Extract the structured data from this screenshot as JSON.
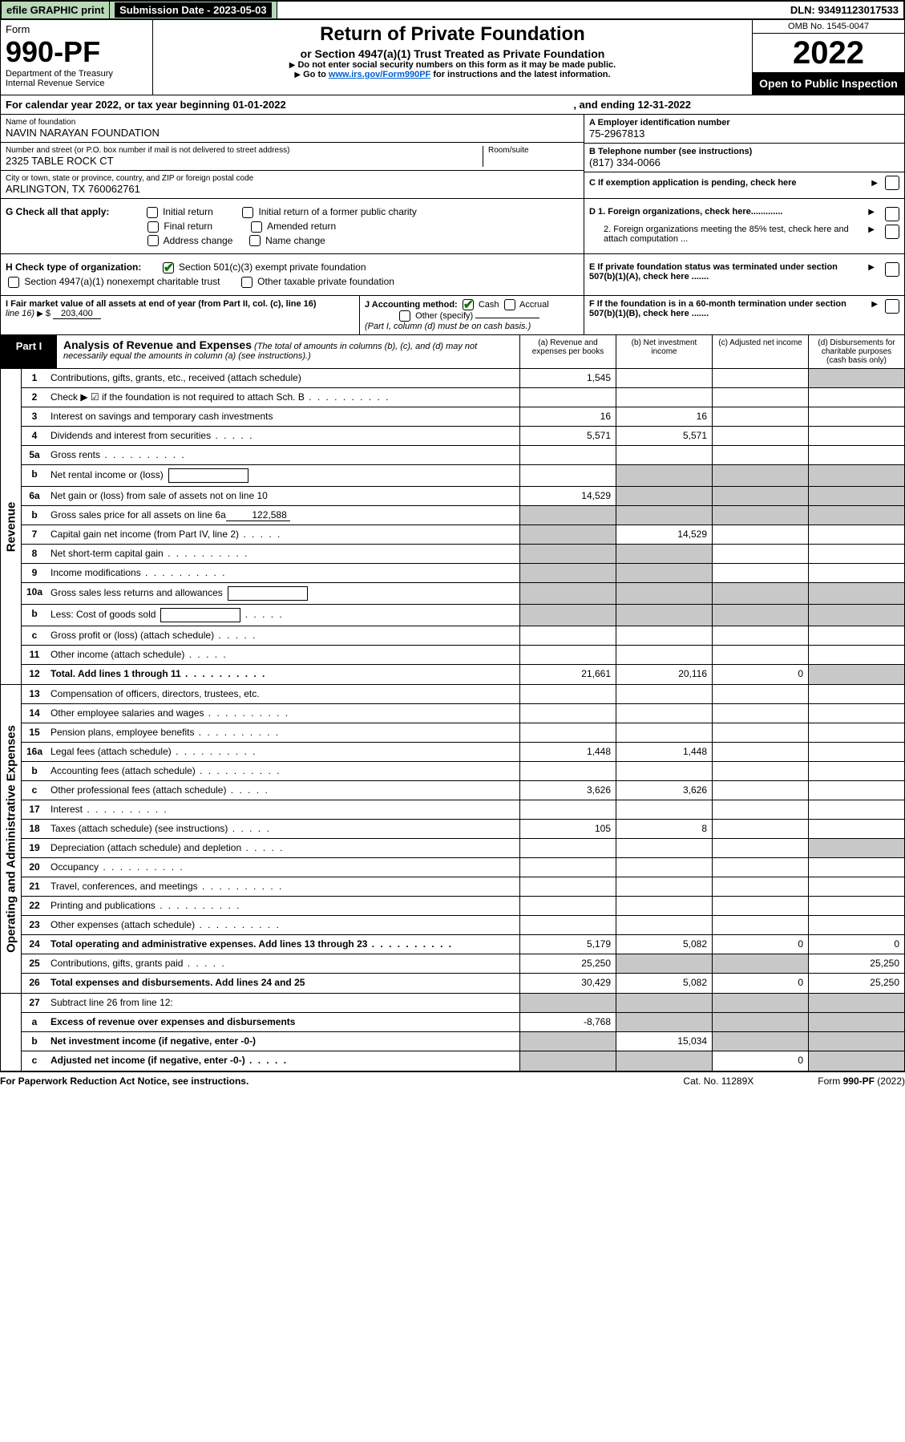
{
  "topbar": {
    "efile": "efile GRAPHIC print",
    "subdate_label": "Submission Date - 2023-05-03",
    "dln": "DLN: 93491123017533"
  },
  "header": {
    "form_label": "Form",
    "form_number": "990-PF",
    "dept": "Department of the Treasury",
    "irs": "Internal Revenue Service",
    "title": "Return of Private Foundation",
    "subtitle": "or Section 4947(a)(1) Trust Treated as Private Foundation",
    "note1": "Do not enter social security numbers on this form as it may be made public.",
    "note2_prefix": "Go to ",
    "note2_link": "www.irs.gov/Form990PF",
    "note2_suffix": " for instructions and the latest information.",
    "omb": "OMB No. 1545-0047",
    "year": "2022",
    "inspect": "Open to Public Inspection"
  },
  "calendar": {
    "text": "For calendar year 2022, or tax year beginning 01-01-2022",
    "ending": ", and ending 12-31-2022"
  },
  "info": {
    "name_label": "Name of foundation",
    "name": "NAVIN NARAYAN FOUNDATION",
    "addr_label": "Number and street (or P.O. box number if mail is not delivered to street address)",
    "addr": "2325 TABLE ROCK CT",
    "room_label": "Room/suite",
    "city_label": "City or town, state or province, country, and ZIP or foreign postal code",
    "city": "ARLINGTON, TX  760062761",
    "A_label": "A Employer identification number",
    "A_val": "75-2967813",
    "B_label": "B Telephone number (see instructions)",
    "B_val": "(817) 334-0066",
    "C_label": "C If exemption application is pending, check here"
  },
  "G": {
    "label": "G Check all that apply:",
    "opts": [
      "Initial return",
      "Final return",
      "Address change",
      "Initial return of a former public charity",
      "Amended return",
      "Name change"
    ]
  },
  "D": {
    "d1": "D 1. Foreign organizations, check here.............",
    "d2": "2. Foreign organizations meeting the 85% test, check here and attach computation ...",
    "e": "E  If private foundation status was terminated under section 507(b)(1)(A), check here .......",
    "f": "F  If the foundation is in a 60-month termination under section 507(b)(1)(B), check here ......."
  },
  "H": {
    "label": "H Check type of organization:",
    "opt1": "Section 501(c)(3) exempt private foundation",
    "opt2": "Section 4947(a)(1) nonexempt charitable trust",
    "opt3": "Other taxable private foundation"
  },
  "I": {
    "label": "I Fair market value of all assets at end of year (from Part II, col. (c), line 16)",
    "val_prefix": "$",
    "val": "203,400"
  },
  "J": {
    "label": "J Accounting method:",
    "opts": [
      "Cash",
      "Accrual",
      "Other (specify)"
    ],
    "note": "(Part I, column (d) must be on cash basis.)"
  },
  "partI": {
    "label": "Part I",
    "title": "Analysis of Revenue and Expenses",
    "desc": "(The total of amounts in columns (b), (c), and (d) may not necessarily equal the amounts in column (a) (see instructions).)",
    "cols": {
      "a": "(a)  Revenue and expenses per books",
      "b": "(b)  Net investment income",
      "c": "(c)  Adjusted net income",
      "d": "(d)  Disbursements for charitable purposes (cash basis only)"
    }
  },
  "side_labels": {
    "revenue": "Revenue",
    "expenses": "Operating and Administrative Expenses"
  },
  "rows_revenue": [
    {
      "n": "1",
      "desc": "Contributions, gifts, grants, etc., received (attach schedule)",
      "a": "1,545",
      "d_grey": true
    },
    {
      "n": "2",
      "desc": "Check ▶ ☑ if the foundation is not required to attach Sch. B",
      "nocols": true,
      "dots": true
    },
    {
      "n": "3",
      "desc": "Interest on savings and temporary cash investments",
      "a": "16",
      "b": "16"
    },
    {
      "n": "4",
      "desc": "Dividends and interest from securities",
      "a": "5,571",
      "b": "5,571",
      "dots_short": true
    },
    {
      "n": "5a",
      "desc": "Gross rents",
      "dots": true
    },
    {
      "n": "b",
      "desc": "Net rental income or (loss)",
      "inline_box": true,
      "grey_bcd": true
    },
    {
      "n": "6a",
      "desc": "Net gain or (loss) from sale of assets not on line 10",
      "a": "14,529",
      "grey_bcd": true
    },
    {
      "n": "b",
      "desc": "Gross sales price for all assets on line 6a",
      "underline": "122,588",
      "grey_all": true
    },
    {
      "n": "7",
      "desc": "Capital gain net income (from Part IV, line 2)",
      "b": "14,529",
      "a_grey": true,
      "dots_short": true
    },
    {
      "n": "8",
      "desc": "Net short-term capital gain",
      "a_grey": true,
      "b_grey": true,
      "dots": true
    },
    {
      "n": "9",
      "desc": "Income modifications",
      "a_grey": true,
      "b_grey": true,
      "dots": true
    },
    {
      "n": "10a",
      "desc": "Gross sales less returns and allowances",
      "inline_box": true,
      "grey_all": true
    },
    {
      "n": "b",
      "desc": "Less: Cost of goods sold",
      "inline_box": true,
      "grey_all": true,
      "dots_short": true
    },
    {
      "n": "c",
      "desc": "Gross profit or (loss) (attach schedule)",
      "dots_short": true
    },
    {
      "n": "11",
      "desc": "Other income (attach schedule)",
      "dots_short": true
    },
    {
      "n": "12",
      "desc": "Total. Add lines 1 through 11",
      "bold": true,
      "a": "21,661",
      "b": "20,116",
      "c": "0",
      "d_grey": true,
      "dots": true
    }
  ],
  "rows_expenses": [
    {
      "n": "13",
      "desc": "Compensation of officers, directors, trustees, etc."
    },
    {
      "n": "14",
      "desc": "Other employee salaries and wages",
      "dots": true
    },
    {
      "n": "15",
      "desc": "Pension plans, employee benefits",
      "dots": true
    },
    {
      "n": "16a",
      "desc": "Legal fees (attach schedule)",
      "a": "1,448",
      "b": "1,448",
      "dots": true
    },
    {
      "n": "b",
      "desc": "Accounting fees (attach schedule)",
      "dots": true
    },
    {
      "n": "c",
      "desc": "Other professional fees (attach schedule)",
      "a": "3,626",
      "b": "3,626",
      "dots_short": true
    },
    {
      "n": "17",
      "desc": "Interest",
      "dots": true
    },
    {
      "n": "18",
      "desc": "Taxes (attach schedule) (see instructions)",
      "a": "105",
      "b": "8",
      "dots_short": true
    },
    {
      "n": "19",
      "desc": "Depreciation (attach schedule) and depletion",
      "d_grey": true,
      "dots_short": true
    },
    {
      "n": "20",
      "desc": "Occupancy",
      "dots": true
    },
    {
      "n": "21",
      "desc": "Travel, conferences, and meetings",
      "dots": true
    },
    {
      "n": "22",
      "desc": "Printing and publications",
      "dots": true
    },
    {
      "n": "23",
      "desc": "Other expenses (attach schedule)",
      "dots": true
    },
    {
      "n": "24",
      "desc": "Total operating and administrative expenses. Add lines 13 through 23",
      "bold": true,
      "a": "5,179",
      "b": "5,082",
      "c": "0",
      "d": "0",
      "dots": true
    },
    {
      "n": "25",
      "desc": "Contributions, gifts, grants paid",
      "a": "25,250",
      "b_grey": true,
      "c_grey": true,
      "d": "25,250",
      "dots_short": true
    },
    {
      "n": "26",
      "desc": "Total expenses and disbursements. Add lines 24 and 25",
      "bold": true,
      "a": "30,429",
      "b": "5,082",
      "c": "0",
      "d": "25,250"
    }
  ],
  "rows_bottom": [
    {
      "n": "27",
      "desc": "Subtract line 26 from line 12:",
      "grey_all": true
    },
    {
      "n": "a",
      "desc": "Excess of revenue over expenses and disbursements",
      "bold": true,
      "a": "-8,768",
      "grey_bcd": true
    },
    {
      "n": "b",
      "desc": "Net investment income (if negative, enter -0-)",
      "bold": true,
      "a_grey": true,
      "b": "15,034",
      "grey_cd": true
    },
    {
      "n": "c",
      "desc": "Adjusted net income (if negative, enter -0-)",
      "bold": true,
      "a_grey": true,
      "b_grey": true,
      "c": "0",
      "d_grey": true,
      "dots_short": true
    }
  ],
  "footer": {
    "left": "For Paperwork Reduction Act Notice, see instructions.",
    "mid": "Cat. No. 11289X",
    "right": "Form 990-PF (2022)"
  },
  "colors": {
    "green_bg": "#b8d8b8",
    "link": "#0060d0",
    "check_green": "#0a7a0a",
    "grey": "#c8c8c8"
  }
}
